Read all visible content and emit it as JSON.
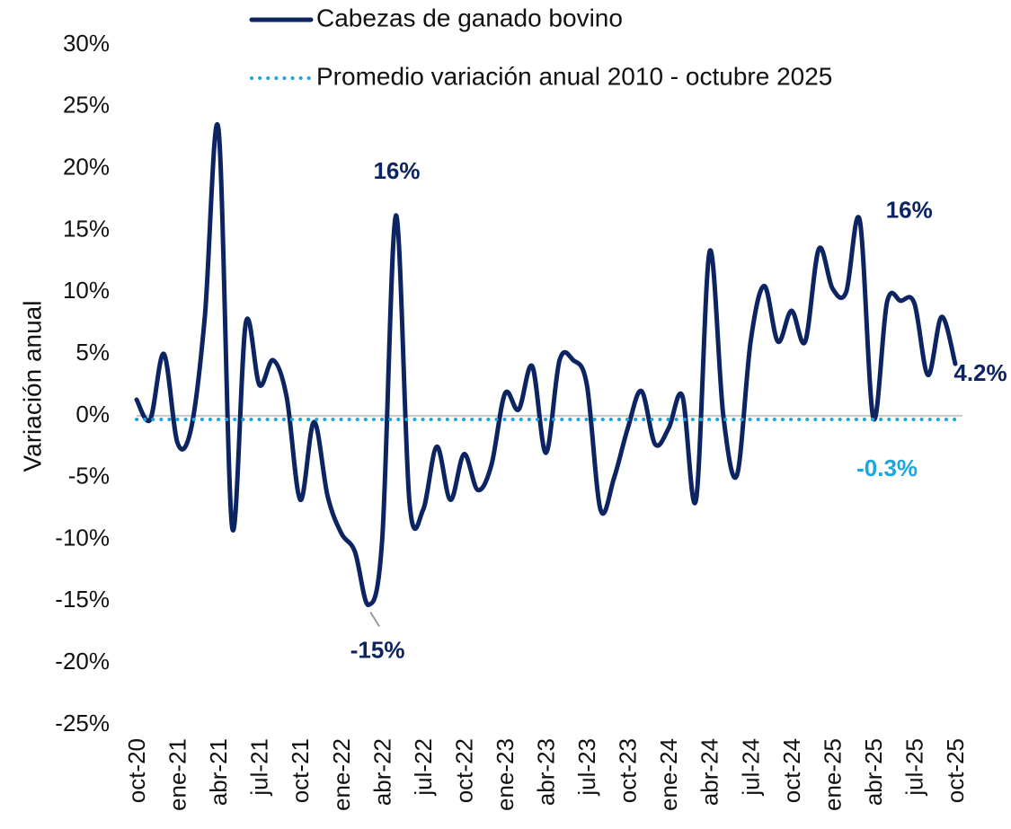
{
  "chart_data": {
    "type": "line",
    "y_label": "Variación anual",
    "categories": [
      "oct-20",
      null,
      null,
      "ene-21",
      null,
      null,
      "abr-21",
      null,
      null,
      "jul-21",
      null,
      null,
      "oct-21",
      null,
      null,
      "ene-22",
      null,
      null,
      "abr-22",
      null,
      null,
      "jul-22",
      null,
      null,
      "oct-22",
      null,
      null,
      "ene-23",
      null,
      null,
      "abr-23",
      null,
      null,
      "jul-23",
      null,
      null,
      "oct-23",
      null,
      null,
      "ene-24",
      null,
      null,
      "abr-24",
      null,
      null,
      "jul-24",
      null,
      null,
      "oct-24",
      null,
      null,
      "ene-25",
      null,
      null,
      "abr-25",
      null,
      null,
      "jul-25",
      null,
      null,
      "oct-25"
    ],
    "series": [
      {
        "name": "Cabezas de ganado bovino",
        "color": "#0c2461",
        "style": "solid",
        "values": [
          1.3,
          -0.3,
          5.0,
          -2.2,
          -1.0,
          8,
          23.2,
          -9,
          7.5,
          2.5,
          4.5,
          1.5,
          -6.8,
          -0.5,
          -6.5,
          -9.5,
          -11,
          -15.3,
          -10,
          16.2,
          -7,
          -7.6,
          -2.5,
          -6.8,
          -3.1,
          -6,
          -4,
          1.8,
          0.5,
          4,
          -3,
          4.5,
          4.5,
          2.5,
          -7.6,
          -5,
          -1,
          2,
          -2.3,
          -1.0,
          1.6,
          -6.8,
          13.3,
          0,
          -4.8,
          6,
          10.5,
          6,
          8.5,
          6,
          13.5,
          10.3,
          10,
          15.8,
          -0.2,
          9.2,
          9.3,
          9.1,
          3.3,
          8,
          4.2
        ],
        "value_labels": [
          null,
          null,
          null,
          null,
          null,
          null,
          null,
          null,
          null,
          null,
          null,
          null,
          null,
          null,
          null,
          null,
          null,
          "-15%",
          null,
          "16%",
          null,
          null,
          null,
          null,
          null,
          null,
          null,
          null,
          null,
          null,
          null,
          null,
          null,
          null,
          null,
          null,
          null,
          null,
          null,
          null,
          null,
          null,
          null,
          null,
          null,
          null,
          null,
          null,
          null,
          null,
          null,
          null,
          null,
          "16%",
          null,
          null,
          null,
          null,
          null,
          null,
          "4.2%"
        ]
      },
      {
        "name": "Promedio variación anual 2010 - octubre 2025",
        "color": "#1aa7e0",
        "style": "dotted",
        "values": [
          -0.3,
          -0.3,
          -0.3,
          -0.3,
          -0.3,
          -0.3,
          -0.3,
          -0.3,
          -0.3,
          -0.3,
          -0.3,
          -0.3,
          -0.3,
          -0.3,
          -0.3,
          -0.3,
          -0.3,
          -0.3,
          -0.3,
          -0.3,
          -0.3,
          -0.3,
          -0.3,
          -0.3,
          -0.3,
          -0.3,
          -0.3,
          -0.3,
          -0.3,
          -0.3,
          -0.3,
          -0.3,
          -0.3,
          -0.3,
          -0.3,
          -0.3,
          -0.3,
          -0.3,
          -0.3,
          -0.3,
          -0.3,
          -0.3,
          -0.3,
          -0.3,
          -0.3,
          -0.3,
          -0.3,
          -0.3,
          -0.3,
          -0.3,
          -0.3,
          -0.3,
          -0.3,
          -0.3,
          -0.3,
          -0.3,
          -0.3,
          -0.3,
          -0.3,
          -0.3,
          -0.3
        ],
        "value_labels": [
          null,
          null,
          null,
          null,
          null,
          null,
          null,
          null,
          null,
          null,
          null,
          null,
          null,
          null,
          null,
          null,
          null,
          null,
          null,
          null,
          null,
          null,
          null,
          null,
          null,
          null,
          null,
          null,
          null,
          null,
          null,
          null,
          null,
          null,
          null,
          null,
          null,
          null,
          null,
          null,
          null,
          null,
          null,
          null,
          null,
          null,
          null,
          null,
          null,
          null,
          null,
          null,
          null,
          null,
          null,
          "-0.3%",
          null,
          null,
          null,
          null,
          null
        ]
      }
    ],
    "ylim": [
      -25,
      30
    ],
    "yticks": [
      {
        "value": -25,
        "label": "-25%"
      },
      {
        "value": -20,
        "label": "-20%"
      },
      {
        "value": -15,
        "label": "-15%"
      },
      {
        "value": -10,
        "label": "-10%"
      },
      {
        "value": -5,
        "label": "-5%"
      },
      {
        "value": 0,
        "label": "0%"
      },
      {
        "value": 5,
        "label": "5%"
      },
      {
        "value": 10,
        "label": "10%"
      },
      {
        "value": 15,
        "label": "15%"
      },
      {
        "value": 20,
        "label": "20%"
      },
      {
        "value": 25,
        "label": "25%"
      },
      {
        "value": 30,
        "label": "30%"
      }
    ],
    "grid": false,
    "legend": "top"
  }
}
